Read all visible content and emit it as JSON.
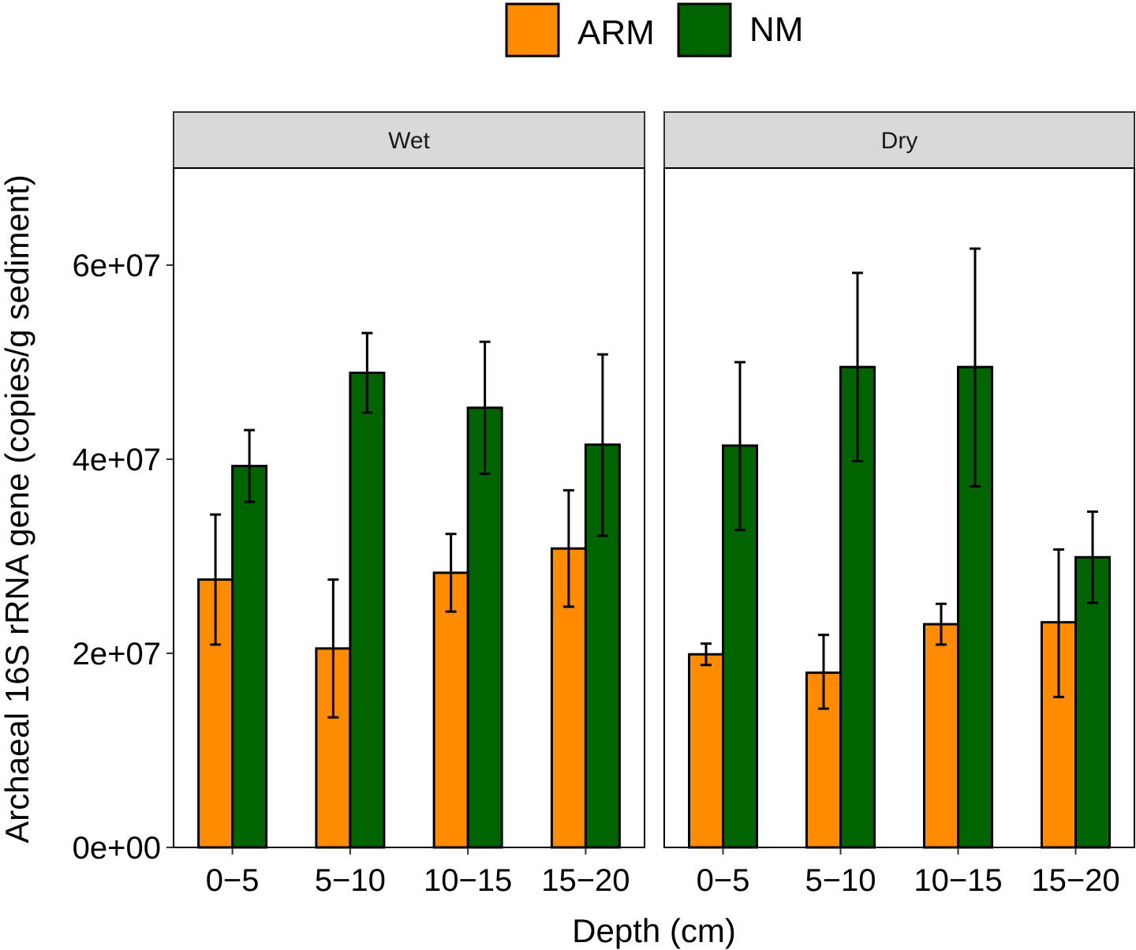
{
  "chart_data": {
    "type": "bar",
    "facets": [
      "Wet",
      "Dry"
    ],
    "categories": [
      "0−5",
      "5−10",
      "10−15",
      "15−20"
    ],
    "xlabel": "Depth (cm)",
    "ylabel": "Archaeal 16S rRNA gene (copies/g sediment)",
    "ylim": [
      0,
      70000000
    ],
    "yticks": [
      0,
      20000000,
      40000000,
      60000000
    ],
    "ytick_labels": [
      "0e+00",
      "2e+07",
      "4e+07",
      "6e+07"
    ],
    "legend_position": "top",
    "series": [
      {
        "name": "ARM",
        "color": "#FF8C00",
        "values": {
          "Wet": [
            27600000,
            20500000,
            28300000,
            30800000
          ],
          "Dry": [
            19900000,
            18000000,
            23000000,
            23200000
          ]
        },
        "err_low": {
          "Wet": [
            20900000,
            13400000,
            24300000,
            24800000
          ],
          "Dry": [
            18800000,
            14300000,
            20900000,
            15500000
          ]
        },
        "err_high": {
          "Wet": [
            34300000,
            27600000,
            32300000,
            36800000
          ],
          "Dry": [
            21000000,
            21900000,
            25100000,
            30700000
          ]
        }
      },
      {
        "name": "NM",
        "color": "#006400",
        "values": {
          "Wet": [
            39300000,
            48900000,
            45300000,
            41500000
          ],
          "Dry": [
            41400000,
            49500000,
            49500000,
            29900000
          ]
        },
        "err_low": {
          "Wet": [
            35600000,
            44800000,
            38500000,
            32100000
          ],
          "Dry": [
            32700000,
            39800000,
            37200000,
            25200000
          ]
        },
        "err_high": {
          "Wet": [
            43000000,
            53000000,
            52100000,
            50800000
          ],
          "Dry": [
            50000000,
            59200000,
            61700000,
            34600000
          ]
        }
      }
    ]
  }
}
